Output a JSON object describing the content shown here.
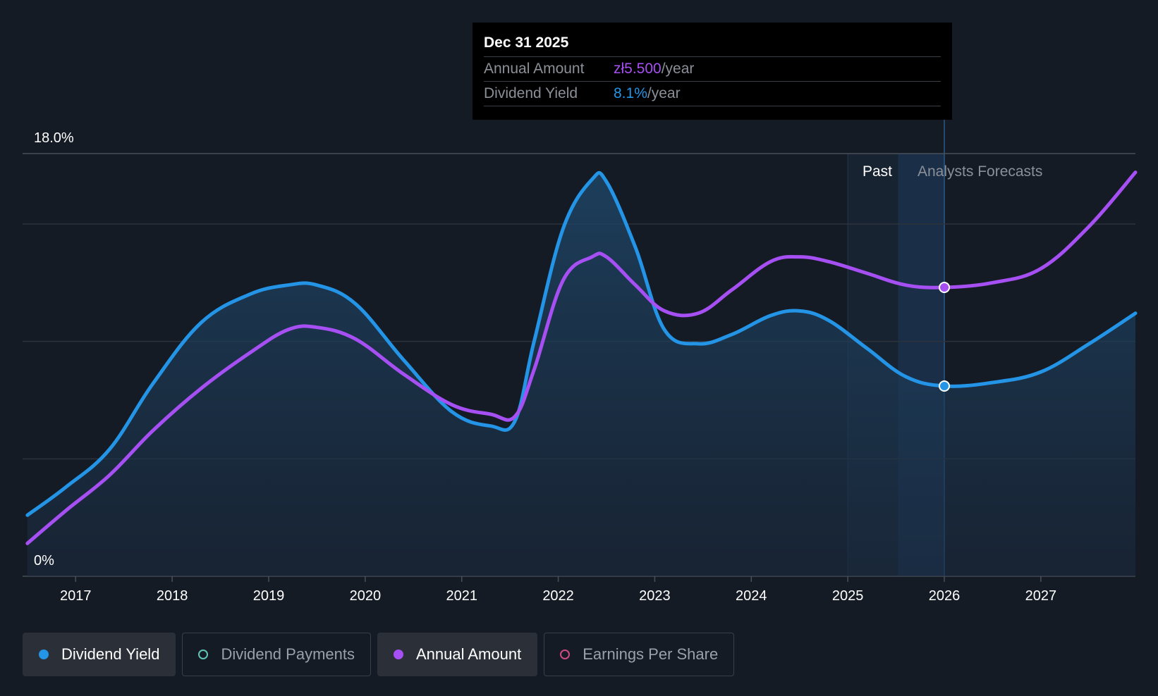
{
  "tooltip": {
    "date": "Dec 31 2025",
    "annual_amount_label": "Annual Amount",
    "annual_amount_value": "zł5.500",
    "annual_amount_unit": "/year",
    "dividend_yield_label": "Dividend Yield",
    "dividend_yield_value": "8.1%",
    "dividend_yield_unit": "/year"
  },
  "regions": {
    "past_label": "Past",
    "forecast_label": "Analysts Forecasts"
  },
  "legend": [
    {
      "label": "Dividend Yield",
      "color": "#2394e6",
      "active": true
    },
    {
      "label": "Dividend Payments",
      "color": "#5ec4b6",
      "active": false
    },
    {
      "label": "Annual Amount",
      "color": "#a64ff2",
      "active": true
    },
    {
      "label": "Earnings Per Share",
      "color": "#d04a82",
      "active": false
    }
  ],
  "colors": {
    "yield": "#2394e6",
    "amount": "#a64ff2",
    "background": "#151b25"
  },
  "chart_data": {
    "type": "line",
    "title": "",
    "xlabel": "",
    "ylabel": "",
    "y_tick_labels": [
      "18.0%",
      "0%"
    ],
    "ylim": [
      0,
      18
    ],
    "xlim": [
      2016.45,
      2027.98
    ],
    "x_ticks": [
      2017,
      2018,
      2019,
      2020,
      2021,
      2022,
      2023,
      2024,
      2025,
      2026,
      2027
    ],
    "x_tick_labels": [
      "2017",
      "2018",
      "2019",
      "2020",
      "2021",
      "2022",
      "2023",
      "2024",
      "2025",
      "2026",
      "2027"
    ],
    "grid": true,
    "past_region": [
      2025.0,
      2025.52
    ],
    "forecast_start": 2025.52,
    "highlight_x": 2026.0,
    "series": [
      {
        "name": "Dividend Yield",
        "x": [
          2016.5,
          2016.9,
          2017.35,
          2017.8,
          2018.3,
          2018.8,
          2019.2,
          2019.5,
          2019.9,
          2020.4,
          2020.9,
          2021.3,
          2021.55,
          2021.75,
          2022.05,
          2022.35,
          2022.5,
          2022.8,
          2023.1,
          2023.45,
          2023.8,
          2024.2,
          2024.5,
          2024.8,
          2025.2,
          2025.6,
          2026.0,
          2026.5,
          2027.0,
          2027.5,
          2027.98
        ],
        "y": [
          2.6,
          3.8,
          5.4,
          8.2,
          10.8,
          12.0,
          12.4,
          12.4,
          11.6,
          9.2,
          7.0,
          6.4,
          6.6,
          10.0,
          14.8,
          16.9,
          16.8,
          14.0,
          10.5,
          9.9,
          10.3,
          11.1,
          11.3,
          10.9,
          9.7,
          8.5,
          8.1,
          8.25,
          8.7,
          9.9,
          11.2
        ]
      },
      {
        "name": "Annual Amount",
        "x": [
          2016.5,
          2016.9,
          2017.35,
          2017.8,
          2018.3,
          2018.8,
          2019.2,
          2019.5,
          2019.9,
          2020.4,
          2020.9,
          2021.3,
          2021.55,
          2021.75,
          2022.05,
          2022.35,
          2022.5,
          2022.8,
          2023.1,
          2023.45,
          2023.8,
          2024.2,
          2024.5,
          2024.8,
          2025.2,
          2025.6,
          2026.0,
          2026.5,
          2027.0,
          2027.5,
          2027.98
        ],
        "y": [
          1.4,
          2.8,
          4.3,
          6.2,
          8.0,
          9.5,
          10.5,
          10.6,
          10.1,
          8.6,
          7.3,
          6.9,
          6.8,
          8.8,
          12.6,
          13.6,
          13.6,
          12.4,
          11.3,
          11.2,
          12.2,
          13.4,
          13.6,
          13.4,
          12.9,
          12.4,
          12.3,
          12.5,
          13.1,
          14.9,
          17.2
        ]
      }
    ]
  }
}
